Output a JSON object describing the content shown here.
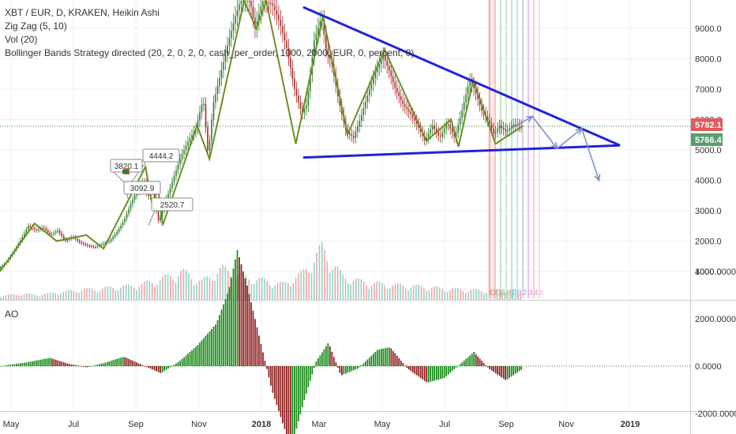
{
  "legend": {
    "title": "XBT / EUR, D, KRAKEN, Heikin Ashi",
    "zigzag": "Zig Zag (5, 10)",
    "vol": "Vol (20)",
    "strategy": "Bollinger Bands Strategy directed (20, 2, 0, 2, 0, cash_per_order, 1000, 2000, EUR, 0, percent, 0)"
  },
  "ao_label": "AO",
  "colors": {
    "up": "#2e7d2e",
    "down": "#a52a2a",
    "zigzag": "#6b8e23",
    "trendline": "#1f24d6",
    "projection": "#7c8fc9",
    "vol_up": "#8fd3c8",
    "vol_down": "#f2a3a3",
    "ao_up": "#138a13",
    "ao_down": "#8b1a1a",
    "tag_red": "#e05a5a",
    "tag_green": "#5a9e6f",
    "grid": "#eef0f3"
  },
  "chart_data": [
    {
      "type": "candlestick",
      "title": "XBT / EUR, D, KRAKEN, Heikin Ashi",
      "x_tick_labels": [
        "May",
        "Jul",
        "Sep",
        "Nov",
        "2018",
        "Mar",
        "May",
        "Jul",
        "Sep",
        "Nov",
        "2019"
      ],
      "y_tick_labels": [
        "9000.0",
        "8000.0",
        "7000.0",
        "6000.0",
        "5000.0",
        "4000.0",
        "3000.0",
        "2000.0",
        "1000.0"
      ],
      "ylim": [
        0,
        9900
      ],
      "current_price_labels": [
        {
          "text": "5782.1",
          "color": "red"
        },
        {
          "text": "5766.4",
          "color": "green"
        }
      ],
      "zigzag_labels": [
        "4444.2",
        "3820.1",
        "3092.9",
        "2520.7"
      ],
      "price_series": [
        {
          "t": 0,
          "p": 1100
        },
        {
          "t": 6,
          "p": 1300
        },
        {
          "t": 12,
          "p": 1650
        },
        {
          "t": 18,
          "p": 2050
        },
        {
          "t": 24,
          "p": 2500
        },
        {
          "t": 30,
          "p": 2350
        },
        {
          "t": 36,
          "p": 2450
        },
        {
          "t": 42,
          "p": 2200
        },
        {
          "t": 48,
          "p": 2350
        },
        {
          "t": 54,
          "p": 2000
        },
        {
          "t": 60,
          "p": 2150
        },
        {
          "t": 66,
          "p": 1950
        },
        {
          "t": 72,
          "p": 1850
        },
        {
          "t": 78,
          "p": 1800
        },
        {
          "t": 84,
          "p": 1900
        },
        {
          "t": 90,
          "p": 2000
        },
        {
          "t": 96,
          "p": 2300
        },
        {
          "t": 102,
          "p": 2700
        },
        {
          "t": 108,
          "p": 3300
        },
        {
          "t": 114,
          "p": 3800
        },
        {
          "t": 118,
          "p": 4000
        },
        {
          "t": 121,
          "p": 3400
        },
        {
          "t": 124,
          "p": 3800
        },
        {
          "t": 127,
          "p": 3200
        },
        {
          "t": 130,
          "p": 2600
        },
        {
          "t": 134,
          "p": 3200
        },
        {
          "t": 138,
          "p": 3600
        },
        {
          "t": 142,
          "p": 4100
        },
        {
          "t": 148,
          "p": 4800
        },
        {
          "t": 154,
          "p": 5300
        },
        {
          "t": 160,
          "p": 5700
        },
        {
          "t": 166,
          "p": 6700
        },
        {
          "t": 170,
          "p": 4800
        },
        {
          "t": 174,
          "p": 6500
        },
        {
          "t": 180,
          "p": 7500
        },
        {
          "t": 186,
          "p": 8500
        },
        {
          "t": 192,
          "p": 9400
        },
        {
          "t": 196,
          "p": 9900
        },
        {
          "t": 204,
          "p": 9900
        },
        {
          "t": 208,
          "p": 9000
        },
        {
          "t": 214,
          "p": 9900
        },
        {
          "t": 222,
          "p": 9800
        },
        {
          "t": 228,
          "p": 9200
        },
        {
          "t": 234,
          "p": 8300
        },
        {
          "t": 240,
          "p": 7000
        },
        {
          "t": 246,
          "p": 6200
        },
        {
          "t": 250,
          "p": 6500
        },
        {
          "t": 256,
          "p": 8600
        },
        {
          "t": 262,
          "p": 9400
        },
        {
          "t": 266,
          "p": 8200
        },
        {
          "t": 270,
          "p": 7900
        },
        {
          "t": 276,
          "p": 6600
        },
        {
          "t": 282,
          "p": 5600
        },
        {
          "t": 288,
          "p": 5400
        },
        {
          "t": 294,
          "p": 6100
        },
        {
          "t": 300,
          "p": 6900
        },
        {
          "t": 306,
          "p": 7600
        },
        {
          "t": 312,
          "p": 8100
        },
        {
          "t": 316,
          "p": 7700
        },
        {
          "t": 322,
          "p": 7000
        },
        {
          "t": 328,
          "p": 6500
        },
        {
          "t": 334,
          "p": 6200
        },
        {
          "t": 340,
          "p": 5800
        },
        {
          "t": 346,
          "p": 5300
        },
        {
          "t": 352,
          "p": 5800
        },
        {
          "t": 358,
          "p": 5400
        },
        {
          "t": 364,
          "p": 5900
        },
        {
          "t": 370,
          "p": 5400
        },
        {
          "t": 376,
          "p": 6300
        },
        {
          "t": 382,
          "p": 7300
        },
        {
          "t": 386,
          "p": 7000
        },
        {
          "t": 392,
          "p": 6300
        },
        {
          "t": 398,
          "p": 5900
        },
        {
          "t": 402,
          "p": 5500
        },
        {
          "t": 406,
          "p": 5800
        },
        {
          "t": 412,
          "p": 5600
        },
        {
          "t": 418,
          "p": 5850
        },
        {
          "t": 424,
          "p": 5780
        }
      ],
      "zigzag_points": [
        {
          "t": 0,
          "p": 1000
        },
        {
          "t": 28,
          "p": 2580
        },
        {
          "t": 46,
          "p": 2000
        },
        {
          "t": 70,
          "p": 2200
        },
        {
          "t": 84,
          "p": 1750
        },
        {
          "t": 118,
          "p": 4444.2
        },
        {
          "t": 124,
          "p": 3092.9
        },
        {
          "t": 128,
          "p": 3820.1
        },
        {
          "t": 132,
          "p": 2520.7
        },
        {
          "t": 160,
          "p": 5800
        },
        {
          "t": 170,
          "p": 4700
        },
        {
          "t": 198,
          "p": 9900
        },
        {
          "t": 208,
          "p": 9000
        },
        {
          "t": 216,
          "p": 9900
        },
        {
          "t": 240,
          "p": 5200
        },
        {
          "t": 262,
          "p": 9400
        },
        {
          "t": 282,
          "p": 5500
        },
        {
          "t": 312,
          "p": 8300
        },
        {
          "t": 346,
          "p": 5300
        },
        {
          "t": 366,
          "p": 6000
        },
        {
          "t": 372,
          "p": 5100
        },
        {
          "t": 384,
          "p": 7300
        },
        {
          "t": 402,
          "p": 5200
        },
        {
          "t": 424,
          "p": 5780
        }
      ],
      "trendlines": [
        {
          "from": {
            "t": 246,
            "p": 9700
          },
          "to": {
            "t": 503,
            "p": 5150
          }
        },
        {
          "from": {
            "t": 246,
            "p": 4750
          },
          "to": {
            "t": 503,
            "p": 5150
          }
        }
      ],
      "projection_path": [
        {
          "t": 414,
          "p": 5700
        },
        {
          "t": 432,
          "p": 6100
        },
        {
          "t": 452,
          "p": 5050
        },
        {
          "t": 472,
          "p": 5700
        },
        {
          "t": 486,
          "p": 4000
        }
      ],
      "date_strip_labels": [
        "O",
        "C",
        "3",
        "8",
        "2",
        "3",
        "2",
        "3",
        "4",
        "8"
      ]
    },
    {
      "type": "bar",
      "title": "Vol (20)",
      "note": "Volume histogram under price pane",
      "values_relative": [
        0.08,
        0.12,
        0.1,
        0.15,
        0.2,
        0.22,
        0.25,
        0.3,
        0.4,
        0.55,
        0.35,
        0.6,
        0.45,
        0.38,
        0.3,
        0.5,
        1.0,
        0.45,
        0.35,
        0.3,
        0.28,
        0.25,
        0.22,
        0.2,
        0.18,
        0.2,
        0.17
      ]
    },
    {
      "type": "bar",
      "title": "AO",
      "y_tick_labels": [
        "4000.0000",
        "2000.0000",
        "0.0000",
        "-2000.0000"
      ],
      "ylim": [
        -3500,
        5000
      ],
      "series": [
        {
          "t": 0,
          "v": 0
        },
        {
          "t": 20,
          "v": 150
        },
        {
          "t": 40,
          "v": 350
        },
        {
          "t": 55,
          "v": 100
        },
        {
          "t": 70,
          "v": -50
        },
        {
          "t": 85,
          "v": 150
        },
        {
          "t": 100,
          "v": 400
        },
        {
          "t": 115,
          "v": 50
        },
        {
          "t": 130,
          "v": -300
        },
        {
          "t": 145,
          "v": 200
        },
        {
          "t": 160,
          "v": 900
        },
        {
          "t": 175,
          "v": 1800
        },
        {
          "t": 185,
          "v": 3200
        },
        {
          "t": 192,
          "v": 4900
        },
        {
          "t": 200,
          "v": 3400
        },
        {
          "t": 210,
          "v": 1200
        },
        {
          "t": 220,
          "v": -1000
        },
        {
          "t": 230,
          "v": -2600
        },
        {
          "t": 236,
          "v": -3400
        },
        {
          "t": 246,
          "v": -1500
        },
        {
          "t": 256,
          "v": 200
        },
        {
          "t": 266,
          "v": 1000
        },
        {
          "t": 276,
          "v": -400
        },
        {
          "t": 290,
          "v": -100
        },
        {
          "t": 306,
          "v": 700
        },
        {
          "t": 316,
          "v": 800
        },
        {
          "t": 330,
          "v": -100
        },
        {
          "t": 346,
          "v": -700
        },
        {
          "t": 360,
          "v": -500
        },
        {
          "t": 372,
          "v": 50
        },
        {
          "t": 384,
          "v": 600
        },
        {
          "t": 396,
          "v": -100
        },
        {
          "t": 410,
          "v": -600
        },
        {
          "t": 424,
          "v": -100
        }
      ]
    }
  ]
}
